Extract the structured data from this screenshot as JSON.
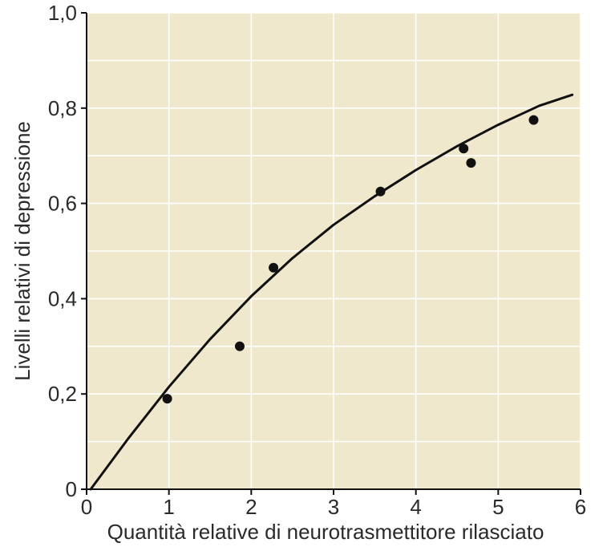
{
  "chart_data": {
    "type": "scatter",
    "title": "",
    "xlabel": "Quantità relative di neurotrasmettitore rilasciato",
    "ylabel": "Livelli relativi di depressione",
    "xlim": [
      0,
      6
    ],
    "ylim": [
      0,
      1.0
    ],
    "x_ticks": [
      0,
      1,
      2,
      3,
      4,
      5,
      6
    ],
    "x_tick_labels": [
      "0",
      "1",
      "2",
      "3",
      "4",
      "5",
      "6"
    ],
    "y_ticks": [
      0,
      0.2,
      0.4,
      0.6,
      0.8,
      1.0
    ],
    "y_tick_labels": [
      "0",
      "0,2",
      "0,4",
      "0,6",
      "0,8",
      "1,0"
    ],
    "grid": true,
    "background_color": "#efe8cc",
    "series": [
      {
        "type": "scatter",
        "color": "#111111",
        "x": [
          0.98,
          1.86,
          2.27,
          3.57,
          4.58,
          4.67,
          5.43
        ],
        "y": [
          0.19,
          0.3,
          0.465,
          0.625,
          0.715,
          0.685,
          0.775
        ]
      },
      {
        "type": "line",
        "color": "#111111",
        "x": [
          0.05,
          0.5,
          1.0,
          1.5,
          2.0,
          2.5,
          3.0,
          3.5,
          4.0,
          4.5,
          5.0,
          5.5,
          5.9
        ],
        "y": [
          0.0,
          0.105,
          0.215,
          0.315,
          0.405,
          0.485,
          0.555,
          0.615,
          0.67,
          0.72,
          0.765,
          0.805,
          0.828
        ]
      }
    ]
  }
}
